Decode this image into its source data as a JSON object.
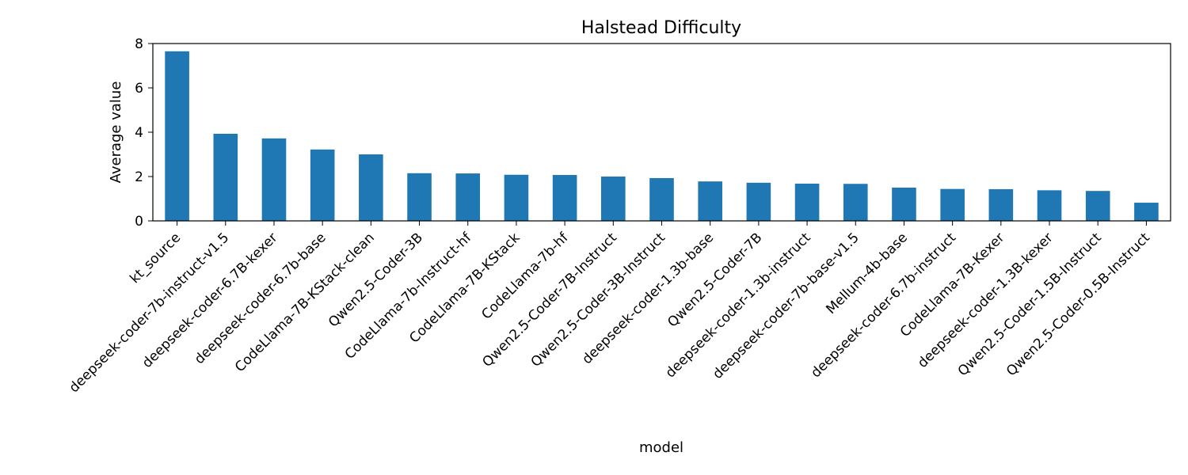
{
  "chart_data": {
    "type": "bar",
    "title": "Halstead Difficulty",
    "xlabel": "model",
    "ylabel": "Average value",
    "ylim": [
      0,
      8
    ],
    "yticks": [
      0,
      2,
      4,
      6,
      8
    ],
    "grid": false,
    "bar_color": "#1f77b4",
    "categories": [
      "kt_source",
      "deepseek-coder-7b-instruct-v1.5",
      "deepseek-coder-6.7B-kexer",
      "deepseek-coder-6.7b-base",
      "CodeLlama-7B-KStack-clean",
      "Qwen2.5-Coder-3B",
      "CodeLlama-7b-Instruct-hf",
      "CodeLlama-7B-KStack",
      "CodeLlama-7b-hf",
      "Qwen2.5-Coder-7B-Instruct",
      "Qwen2.5-Coder-3B-Instruct",
      "deepseek-coder-1.3b-base",
      "Qwen2.5-Coder-7B",
      "deepseek-coder-1.3b-instruct",
      "deepseek-coder-7b-base-v1.5",
      "Mellum-4b-base",
      "deepseek-coder-6.7b-instruct",
      "CodeLlama-7B-Kexer",
      "deepseek-coder-1.3B-kexer",
      "Qwen2.5-Coder-1.5B-Instruct",
      "Qwen2.5-Coder-0.5B-Instruct"
    ],
    "values": [
      7.65,
      3.93,
      3.72,
      3.22,
      3.0,
      2.15,
      2.14,
      2.08,
      2.07,
      2.0,
      1.93,
      1.78,
      1.72,
      1.68,
      1.67,
      1.5,
      1.44,
      1.43,
      1.38,
      1.35,
      0.82
    ]
  }
}
